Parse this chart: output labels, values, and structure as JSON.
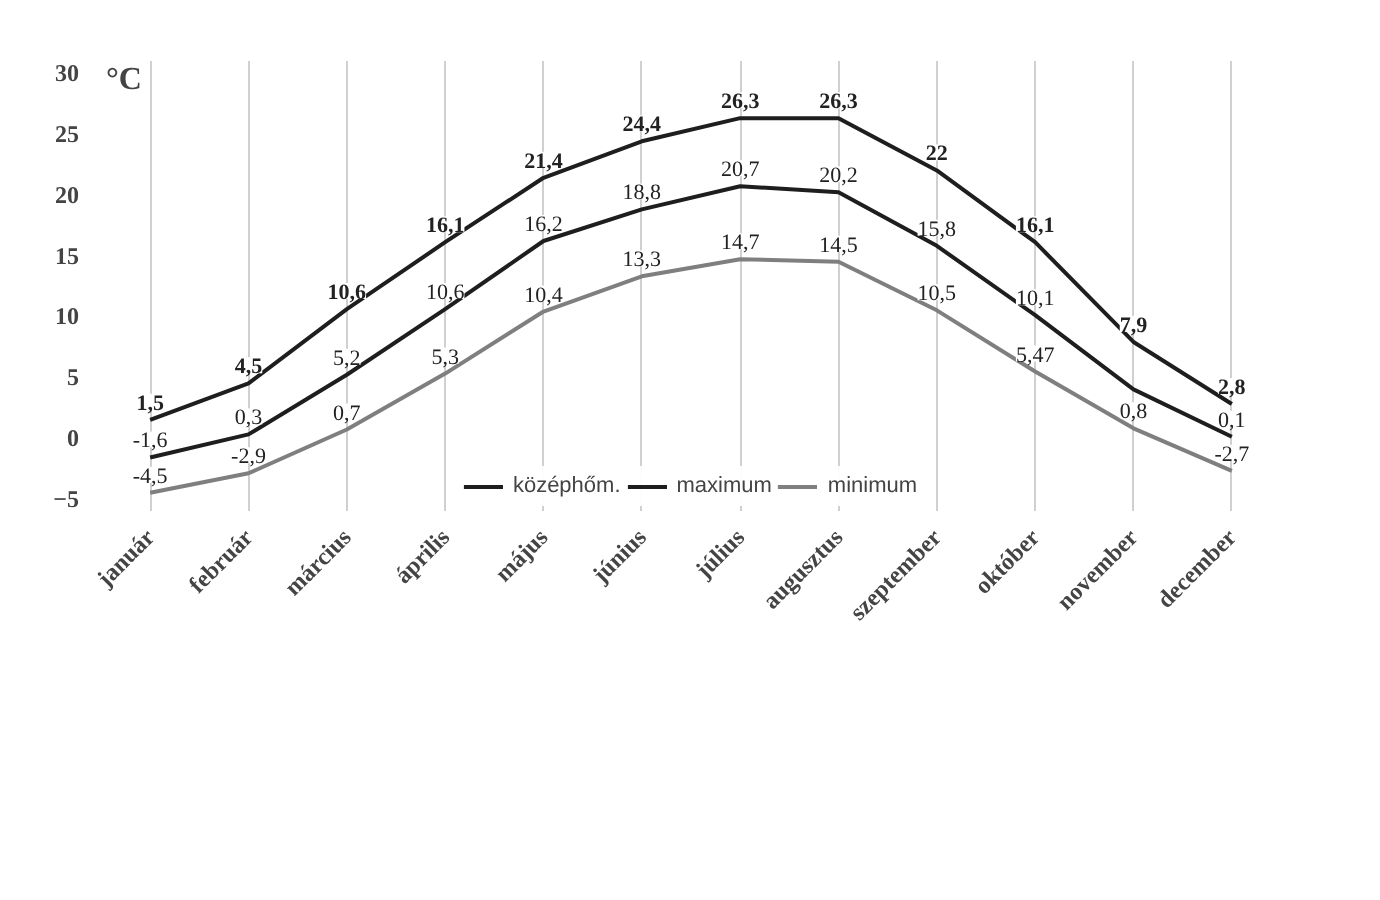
{
  "chart_data": {
    "type": "line",
    "ylabel": "°C",
    "categories": [
      "január",
      "február",
      "március",
      "április",
      "május",
      "június",
      "július",
      "augusztus",
      "szeptember",
      "október",
      "november",
      "december"
    ],
    "series": [
      {
        "name": "középhőm.",
        "color": "#1e1e1e",
        "values": [
          -1.6,
          0.3,
          5.2,
          10.6,
          16.2,
          18.8,
          20.7,
          20.2,
          15.8,
          10.1,
          4,
          0.1
        ],
        "value_labels": [
          "-1,6",
          "0,3",
          "5,2",
          "10,6",
          "16,2",
          "18,8",
          "20,7",
          "20,2",
          "15,8",
          "10,1",
          null,
          "0,1"
        ]
      },
      {
        "name": "maximum",
        "color": "#1e1e1e",
        "values": [
          1.5,
          4.5,
          10.6,
          16.1,
          21.4,
          24.4,
          26.3,
          26.3,
          22,
          16.1,
          7.9,
          2.8
        ],
        "value_labels": [
          "1,5",
          "4,5",
          "10,6",
          "16,1",
          "21,4",
          "24,4",
          "26,3",
          "26,3",
          "22",
          "16,1",
          "7,9",
          "2,8"
        ]
      },
      {
        "name": "minimum",
        "color": "#7f7f7f",
        "values": [
          -4.5,
          -2.9,
          0.7,
          5.3,
          10.4,
          13.3,
          14.7,
          14.5,
          10.5,
          5.47,
          0.8,
          -2.7
        ],
        "value_labels": [
          "-4,5",
          "-2,9",
          "0,7",
          "5,3",
          "10,4",
          "13,3",
          "14,7",
          "14,5",
          "10,5",
          "5,47",
          "0,8",
          "-2,7"
        ]
      }
    ],
    "ylim": [
      -6,
      31
    ],
    "yticks": [
      -5,
      0,
      5,
      10,
      15,
      20,
      25,
      30
    ],
    "grid": "x",
    "legend": "bottom"
  }
}
